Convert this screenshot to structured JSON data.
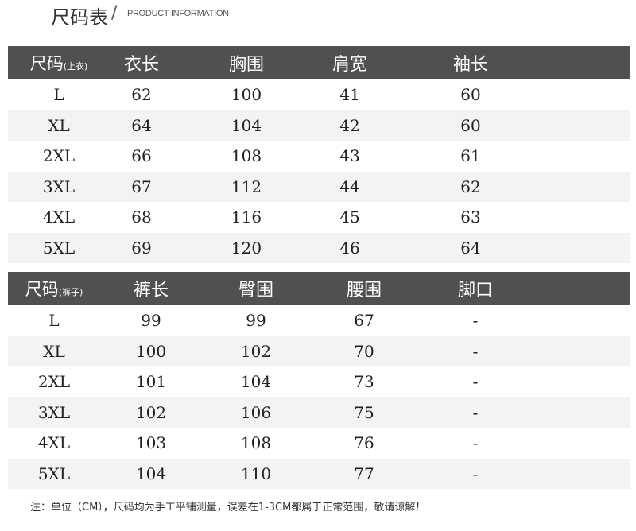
{
  "title": {
    "cn": "尺码表",
    "slash": "/",
    "en": "PRODUCT INFORMATION"
  },
  "tops": {
    "headers": [
      "尺码",
      "衣长",
      "胸围",
      "肩宽",
      "袖长"
    ],
    "header_note": "(上衣)",
    "rows": [
      [
        "L",
        "62",
        "100",
        "41",
        "60"
      ],
      [
        "XL",
        "64",
        "104",
        "42",
        "60"
      ],
      [
        "2XL",
        "66",
        "108",
        "43",
        "61"
      ],
      [
        "3XL",
        "67",
        "112",
        "44",
        "62"
      ],
      [
        "4XL",
        "68",
        "116",
        "45",
        "63"
      ],
      [
        "5XL",
        "69",
        "120",
        "46",
        "64"
      ]
    ]
  },
  "pants": {
    "headers": [
      "尺码",
      "裤长",
      "臀围",
      "腰围",
      "脚口"
    ],
    "header_note": "(裤子)",
    "rows": [
      [
        "L",
        "99",
        "99",
        "67",
        "-"
      ],
      [
        "XL",
        "100",
        "102",
        "70",
        "-"
      ],
      [
        "2XL",
        "101",
        "104",
        "73",
        "-"
      ],
      [
        "3XL",
        "102",
        "106",
        "75",
        "-"
      ],
      [
        "4XL",
        "103",
        "108",
        "76",
        "-"
      ],
      [
        "5XL",
        "104",
        "110",
        "77",
        "-"
      ]
    ]
  },
  "note": "注：单位（CM），尺码均为手工平铺测量，误差在1-3CM都属于正常范围，敬请谅解！",
  "colors": {
    "header_bg": "#505050",
    "alt_row": "#f3f3f3"
  }
}
